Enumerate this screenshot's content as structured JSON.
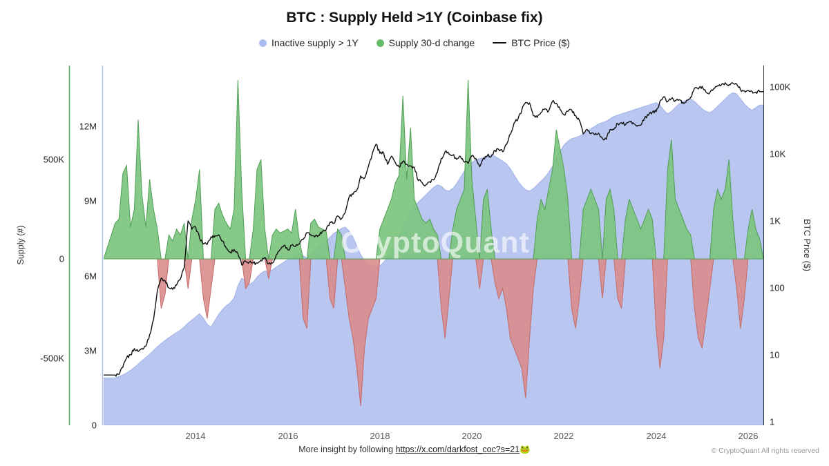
{
  "title": "BTC : Supply Held >1Y (Coinbase fix)",
  "legend": [
    {
      "label": "Inactive supply > 1Y",
      "color": "#a9bdf0"
    },
    {
      "label": "Supply 30-d change",
      "color": "#66bb6a"
    },
    {
      "label": "BTC Price ($)",
      "color": "#111111"
    }
  ],
  "axes": {
    "left_title": "Supply (#)",
    "right_title": "BTC Price ($)",
    "left_change_ticks": [
      "500K",
      "0",
      "-500K"
    ],
    "left_supply_ticks": [
      "12M",
      "9M",
      "6M",
      "3M",
      "0"
    ],
    "right_price_ticks": [
      "100K",
      "10K",
      "1K",
      "100",
      "10",
      "1"
    ],
    "x_ticks": [
      "2014",
      "2016",
      "2018",
      "2020",
      "2022",
      "2024",
      "2026"
    ]
  },
  "watermark": "CryptoQuant",
  "footer": {
    "insight_prefix": "More insight by following ",
    "insight_link": "https://x.com/darkfost_coc?s=21",
    "insight_emoji": "🐸",
    "copyright": "© CryptoQuant All rights reserved"
  },
  "chart_data": {
    "type": "area",
    "title": "BTC : Supply Held >1Y (Coinbase fix)",
    "x_range": [
      2012.0,
      2026.33
    ],
    "x_start": 2012.25,
    "x_step_years": 0.08333333,
    "x_tick_years": [
      2014,
      2016,
      2018,
      2020,
      2022,
      2024,
      2026
    ],
    "supply_axis": {
      "label": "Supply (#)",
      "unit": "BTC",
      "range_M": [
        0,
        14.4
      ],
      "ticks_M": [
        0,
        3,
        6,
        9,
        12
      ]
    },
    "change_axis": {
      "label": "Supply 30-d change",
      "unit": "BTC",
      "range_K": [
        -835,
        970
      ],
      "ticks_K": [
        -500,
        0,
        500
      ]
    },
    "price_axis": {
      "label": "BTC Price ($)",
      "log": true,
      "range": [
        1,
        200000
      ],
      "ticks": [
        1,
        10,
        100,
        1000,
        10000,
        100000
      ]
    },
    "colors": {
      "supply_fill": "#b9c6f0",
      "supply_edge": "#9fb2e8",
      "change_pos_fill": "#7cc47f",
      "change_pos_edge": "#4f9e53",
      "change_neg_fill": "#d98c8c",
      "change_neg_edge": "#c46a6a",
      "price_line": "#111111"
    },
    "series": {
      "supply": {
        "name": "Inactive supply > 1Y",
        "unit": "M BTC",
        "values": [
          1.9,
          1.95,
          2.02,
          2.1,
          2.2,
          2.32,
          2.45,
          2.6,
          2.72,
          2.85,
          3.0,
          3.15,
          3.28,
          3.4,
          3.52,
          3.62,
          3.72,
          3.82,
          3.95,
          4.1,
          4.22,
          4.35,
          4.48,
          4.3,
          4.05,
          3.95,
          4.2,
          4.45,
          4.65,
          4.8,
          4.92,
          5.1,
          5.6,
          5.9,
          5.8,
          5.65,
          5.75,
          5.95,
          6.1,
          6.2,
          6.15,
          6.25,
          6.35,
          6.45,
          6.55,
          6.65,
          6.75,
          6.85,
          6.9,
          6.8,
          6.7,
          6.85,
          7.0,
          7.15,
          7.3,
          7.4,
          7.55,
          7.7,
          7.8,
          7.9,
          7.95,
          7.8,
          7.55,
          7.2,
          6.85,
          6.6,
          6.45,
          6.38,
          6.35,
          6.4,
          6.55,
          6.75,
          7.0,
          7.3,
          7.6,
          7.95,
          8.3,
          8.55,
          8.75,
          8.95,
          9.1,
          9.25,
          9.4,
          9.55,
          9.65,
          9.6,
          9.45,
          9.4,
          9.5,
          9.7,
          9.95,
          10.2,
          10.45,
          10.55,
          10.65,
          10.7,
          10.75,
          10.8,
          10.85,
          10.8,
          10.7,
          10.6,
          10.5,
          10.3,
          10.05,
          9.8,
          9.6,
          9.45,
          9.4,
          9.5,
          9.65,
          9.8,
          9.95,
          10.15,
          10.4,
          10.7,
          11.0,
          11.25,
          11.4,
          11.5,
          11.55,
          11.6,
          11.7,
          11.8,
          11.9,
          12.0,
          12.1,
          12.15,
          12.2,
          12.3,
          12.4,
          12.45,
          12.5,
          12.55,
          12.6,
          12.65,
          12.7,
          12.75,
          12.8,
          12.85,
          12.9,
          12.95,
          12.85,
          12.65,
          12.5,
          12.6,
          12.75,
          12.9,
          13.0,
          13.05,
          13.1,
          13.0,
          12.85,
          12.7,
          12.6,
          12.55,
          12.65,
          12.8,
          12.95,
          13.1,
          13.25,
          13.35,
          13.3,
          13.1,
          12.9,
          12.75,
          12.65,
          12.75,
          12.85
        ]
      },
      "change": {
        "name": "Supply 30-d change",
        "unit": "K BTC",
        "values": [
          180,
          200,
          430,
          470,
          160,
          250,
          700,
          320,
          160,
          400,
          250,
          150,
          -250,
          -180,
          120,
          90,
          150,
          120,
          180,
          -150,
          200,
          300,
          450,
          -200,
          -300,
          -150,
          250,
          280,
          220,
          180,
          150,
          250,
          900,
          350,
          -150,
          -120,
          150,
          450,
          500,
          150,
          -100,
          120,
          150,
          130,
          140,
          150,
          130,
          250,
          100,
          -300,
          -350,
          180,
          200,
          160,
          150,
          140,
          -200,
          -250,
          150,
          120,
          -150,
          -300,
          -400,
          -550,
          -740,
          -450,
          -300,
          -250,
          -200,
          150,
          200,
          250,
          300,
          380,
          420,
          820,
          400,
          660,
          300,
          250,
          200,
          180,
          200,
          150,
          120,
          -250,
          -400,
          -200,
          150,
          250,
          300,
          350,
          900,
          400,
          200,
          -150,
          300,
          350,
          150,
          -120,
          -200,
          -150,
          -250,
          -400,
          -450,
          -500,
          -550,
          -700,
          -400,
          -150,
          200,
          300,
          250,
          350,
          450,
          650,
          550,
          450,
          300,
          -250,
          -350,
          -200,
          250,
          300,
          350,
          300,
          250,
          -200,
          300,
          350,
          250,
          -200,
          -250,
          200,
          300,
          250,
          200,
          150,
          200,
          250,
          200,
          -350,
          -550,
          -400,
          450,
          600,
          300,
          250,
          200,
          150,
          120,
          -250,
          -400,
          -450,
          -300,
          -150,
          250,
          350,
          300,
          350,
          500,
          200,
          -150,
          -350,
          -200,
          150,
          250,
          150,
          100
        ]
      },
      "price": {
        "name": "BTC Price ($)",
        "unit": "USD",
        "values": [
          5,
          5.1,
          6.5,
          9,
          10,
          12.4,
          11.2,
          12.5,
          13.5,
          20,
          33,
          90,
          140,
          128,
          100,
          95,
          110,
          135,
          200,
          1000,
          750,
          800,
          560,
          450,
          445,
          580,
          600,
          620,
          500,
          390,
          340,
          375,
          320,
          220,
          250,
          245,
          235,
          235,
          260,
          285,
          230,
          235,
          310,
          375,
          430,
          370,
          435,
          415,
          450,
          530,
          670,
          625,
          575,
          610,
          700,
          740,
          960,
          920,
          1190,
          1080,
          1350,
          2300,
          2500,
          2870,
          4700,
          4350,
          6450,
          10000,
          14000,
          10200,
          10300,
          7000,
          9250,
          7500,
          6400,
          7750,
          7000,
          6600,
          6300,
          4000,
          3750,
          3450,
          3850,
          4100,
          5300,
          8550,
          10800,
          10000,
          9600,
          8300,
          9150,
          7550,
          7200,
          9350,
          8550,
          6450,
          8650,
          9450,
          9140,
          11350,
          11650,
          10800,
          13800,
          19700,
          29000,
          33100,
          45200,
          58800,
          57750,
          37300,
          35000,
          41500,
          47150,
          43800,
          61300,
          57000,
          46200,
          38500,
          43200,
          45500,
          37650,
          31800,
          19900,
          23300,
          20050,
          19400,
          20500,
          17150,
          16550,
          23100,
          23150,
          28500,
          29250,
          27200,
          30450,
          29250,
          25950,
          26950,
          34650,
          37700,
          42250,
          42600,
          61150,
          71300,
          60650,
          67500,
          62700,
          64600,
          58950,
          63350,
          70200,
          96400,
          93400,
          102400,
          84350,
          82550,
          94200,
          104600,
          107150,
          115750,
          108250,
          114050,
          110100,
          91000,
          87500,
          89000,
          86000,
          84000,
          85000
        ]
      }
    }
  }
}
